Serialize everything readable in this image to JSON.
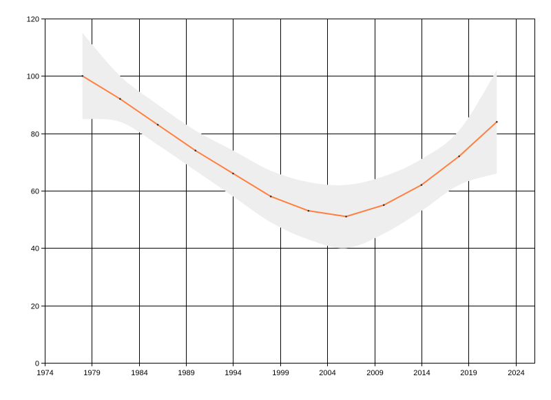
{
  "chart_data": {
    "type": "line",
    "title": "",
    "xlabel": "",
    "ylabel": "",
    "xlim": [
      1974,
      2026
    ],
    "ylim": [
      0,
      120
    ],
    "x_ticks": [
      "1974",
      "1979",
      "1984",
      "1989",
      "1994",
      "1999",
      "2004",
      "2009",
      "2014",
      "2019",
      "2024"
    ],
    "y_ticks": [
      "0",
      "20",
      "40",
      "60",
      "80",
      "100",
      "120"
    ],
    "grid": true,
    "legend": "none",
    "colors": {
      "line": "#ff7f3f",
      "band": "#eeeeee",
      "marker": "#333333",
      "grid": "#000000"
    },
    "series": [
      {
        "x": [
          1978,
          1982,
          1986,
          1990,
          1994,
          1998,
          2002,
          2006,
          2010,
          2014,
          2018,
          2022
        ],
        "values": [
          100,
          92,
          83,
          74,
          66,
          58,
          53,
          51,
          55,
          62,
          72,
          84
        ]
      }
    ],
    "band": {
      "x": [
        1978,
        1982,
        1986,
        1990,
        1994,
        1998,
        2002,
        2006,
        2010,
        2014,
        2018,
        2022
      ],
      "upper": [
        115,
        100,
        90,
        81,
        74,
        67,
        63,
        62,
        65,
        71,
        81,
        102
      ],
      "lower": [
        85,
        84,
        76,
        67,
        58,
        49,
        43,
        40,
        45,
        53,
        62,
        66
      ]
    }
  }
}
